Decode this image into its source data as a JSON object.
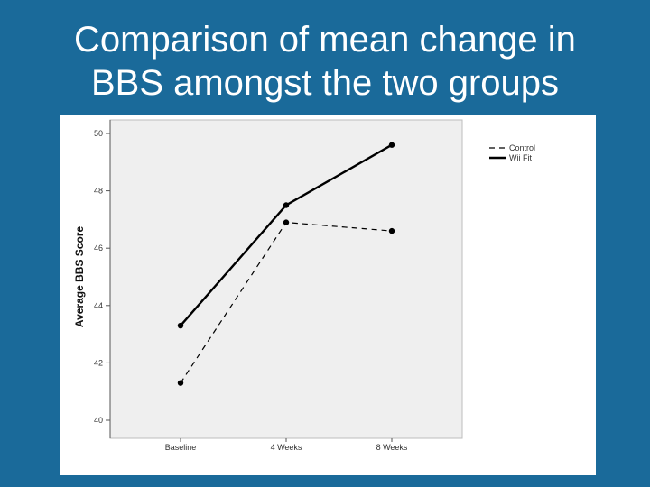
{
  "slide": {
    "title_line1": "Comparison of mean change in",
    "title_line2": "BBS amongst the two groups",
    "background_color": "#1a6a9a"
  },
  "chart_data": {
    "type": "line",
    "title": "",
    "xlabel": "",
    "ylabel": "Average BBS Score",
    "categories": [
      "Baseline",
      "4 Weeks",
      "8 Weeks"
    ],
    "ylim": [
      40,
      50
    ],
    "yticks": [
      40,
      42,
      44,
      46,
      48,
      50
    ],
    "grid": false,
    "plot_background": "#efefef",
    "legend_position": "top-right",
    "series": [
      {
        "name": "Control",
        "values": [
          41.3,
          46.9,
          46.6
        ],
        "style": "dashed",
        "color": "#000000"
      },
      {
        "name": "Wii Fit",
        "values": [
          43.3,
          47.5,
          49.6
        ],
        "style": "solid",
        "color": "#000000"
      }
    ]
  }
}
